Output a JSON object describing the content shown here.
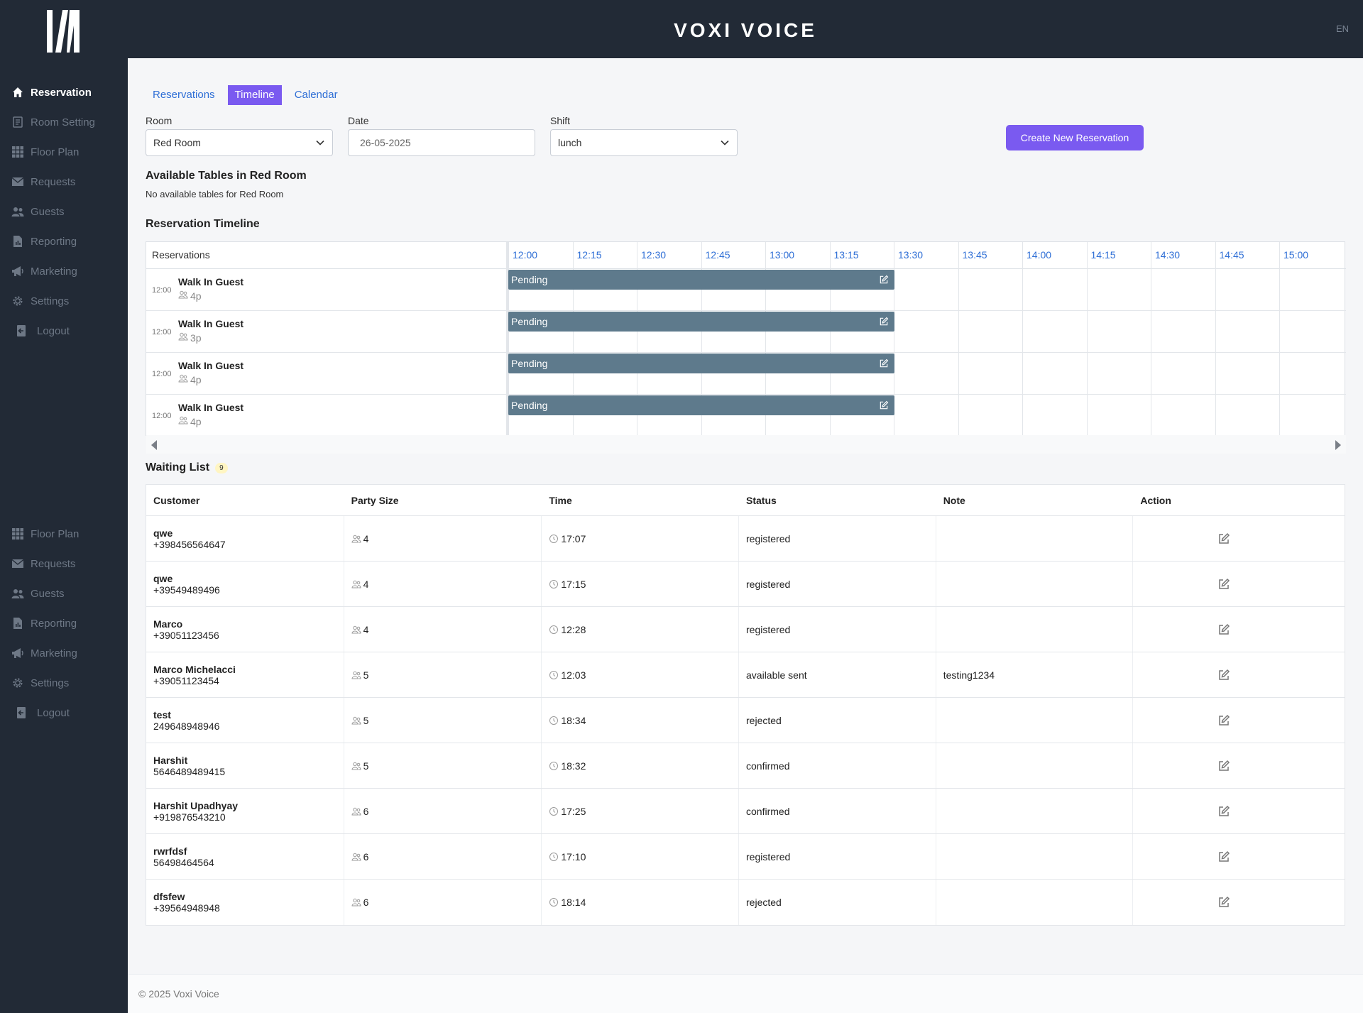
{
  "brand": "VOXI VOICE",
  "language": "EN",
  "sidebar_primary": [
    {
      "label": "Reservation",
      "icon": "home-icon",
      "active": true
    },
    {
      "label": "Room Setting",
      "icon": "room-setting-icon",
      "active": false
    },
    {
      "label": "Floor Plan",
      "icon": "grid-icon",
      "active": false
    },
    {
      "label": "Requests",
      "icon": "envelope-icon",
      "active": false
    },
    {
      "label": "Guests",
      "icon": "users-icon",
      "active": false
    },
    {
      "label": "Reporting",
      "icon": "report-icon",
      "active": false
    },
    {
      "label": "Marketing",
      "icon": "megaphone-icon",
      "active": false
    },
    {
      "label": "Settings",
      "icon": "gear-icon",
      "active": false
    },
    {
      "label": "Logout",
      "icon": "logout-icon",
      "active": false
    }
  ],
  "sidebar_secondary": [
    {
      "label": "Floor Plan",
      "icon": "grid-icon"
    },
    {
      "label": "Requests",
      "icon": "envelope-icon"
    },
    {
      "label": "Guests",
      "icon": "users-icon"
    },
    {
      "label": "Reporting",
      "icon": "report-icon"
    },
    {
      "label": "Marketing",
      "icon": "megaphone-icon"
    },
    {
      "label": "Settings",
      "icon": "gear-icon"
    },
    {
      "label": "Logout",
      "icon": "logout-icon"
    }
  ],
  "tabs": [
    {
      "label": "Reservations",
      "active": false
    },
    {
      "label": "Timeline",
      "active": true
    },
    {
      "label": "Calendar",
      "active": false
    }
  ],
  "filters": {
    "room_label": "Room",
    "room_value": "Red Room",
    "date_label": "Date",
    "date_value": "26-05-2025",
    "shift_label": "Shift",
    "shift_value": "lunch"
  },
  "create_button": "Create New Reservation",
  "available_title": "Available Tables in Red Room",
  "available_text": "No available tables for Red Room",
  "timeline_title": "Reservation Timeline",
  "timeline": {
    "reservations_header": "Reservations",
    "slots": [
      "12:00",
      "12:15",
      "12:30",
      "12:45",
      "13:00",
      "13:15",
      "13:30",
      "13:45",
      "14:00",
      "14:15",
      "14:30",
      "14:45",
      "15:00"
    ],
    "rows": [
      {
        "time": "12:00",
        "name": "Walk In Guest",
        "party": "4p",
        "status": "Pending"
      },
      {
        "time": "12:00",
        "name": "Walk In Guest",
        "party": "3p",
        "status": "Pending"
      },
      {
        "time": "12:00",
        "name": "Walk In Guest",
        "party": "4p",
        "status": "Pending"
      },
      {
        "time": "12:00",
        "name": "Walk In Guest",
        "party": "4p",
        "status": "Pending"
      }
    ]
  },
  "waiting_list": {
    "title": "Waiting List",
    "count": "9",
    "headers": [
      "Customer",
      "Party Size",
      "Time",
      "Status",
      "Note",
      "Action"
    ],
    "rows": [
      {
        "name": "qwe",
        "phone": "+398456564647",
        "party": "4",
        "time": "17:07",
        "status": "registered",
        "note": ""
      },
      {
        "name": "qwe",
        "phone": "+39549489496",
        "party": "4",
        "time": "17:15",
        "status": "registered",
        "note": ""
      },
      {
        "name": "Marco",
        "phone": "+39051123456",
        "party": "4",
        "time": "12:28",
        "status": "registered",
        "note": ""
      },
      {
        "name": "Marco Michelacci",
        "phone": "+39051123454",
        "party": "5",
        "time": "12:03",
        "status": "available sent",
        "note": "testing1234"
      },
      {
        "name": "test",
        "phone": "249648948946",
        "party": "5",
        "time": "18:34",
        "status": "rejected",
        "note": ""
      },
      {
        "name": "Harshit",
        "phone": "5646489489415",
        "party": "5",
        "time": "18:32",
        "status": "confirmed",
        "note": ""
      },
      {
        "name": "Harshit Upadhyay",
        "phone": "+919876543210",
        "party": "6",
        "time": "17:25",
        "status": "confirmed",
        "note": ""
      },
      {
        "name": "rwrfdsf",
        "phone": "56498464564",
        "party": "6",
        "time": "17:10",
        "status": "registered",
        "note": ""
      },
      {
        "name": "dfsfew",
        "phone": "+39564948948",
        "party": "6",
        "time": "18:14",
        "status": "rejected",
        "note": ""
      }
    ]
  },
  "footer": "© 2025 Voxi Voice",
  "colors": {
    "sidebar_bg": "#222a36",
    "accent": "#7a5af0",
    "link": "#2f6fd6",
    "pending_bar": "#5e7a8c"
  }
}
